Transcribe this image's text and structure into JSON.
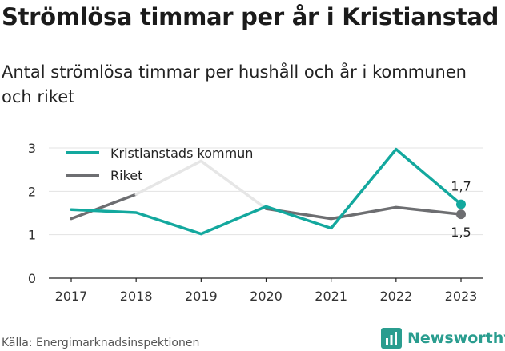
{
  "title": "Strömlösa timmar per år i Kristianstad",
  "subtitle": "Antal strömlösa timmar per hushåll och år i kommunen och riket",
  "source": "Källa: Energimarknadsinspektionen",
  "brand": {
    "name": "Newsworthy",
    "icon": "bar-chart-logo-icon",
    "color": "#2a9d8f"
  },
  "chart_data": {
    "type": "line",
    "title": "Strömlösa timmar per år i Kristianstad",
    "subtitle": "Antal strömlösa timmar per hushåll och år i kommunen och riket",
    "categories": [
      "2017",
      "2018",
      "2019",
      "2020",
      "2021",
      "2022",
      "2023"
    ],
    "y_ticks": [
      "0",
      "1",
      "2",
      "3"
    ],
    "ylim": [
      0,
      3.2
    ],
    "grid": true,
    "legend_position": "top-left",
    "series": [
      {
        "name": "Kristianstads kommun",
        "color": "#13a89e",
        "values": [
          1.58,
          1.51,
          1.02,
          1.65,
          1.15,
          2.97,
          1.7
        ],
        "end_label": "1,7"
      },
      {
        "name": "Riket",
        "color": "#6d6e71",
        "highlight_color": "#e6e6e6",
        "values": [
          1.37,
          1.93,
          2.7,
          1.6,
          1.37,
          1.63,
          1.47
        ],
        "end_label": "1,5"
      }
    ]
  }
}
